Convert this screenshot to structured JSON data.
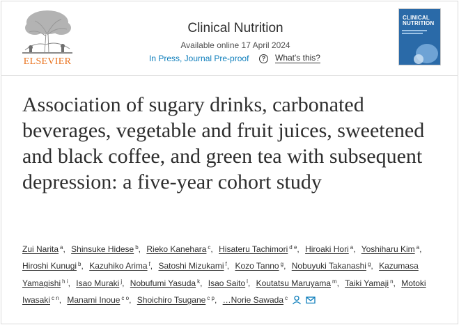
{
  "header": {
    "publisher": "ELSEVIER",
    "journal_title": "Clinical Nutrition",
    "available_online": "Available online 17 April 2024",
    "status": "In Press, Journal Pre-proof",
    "help_glyph": "?",
    "whats_this": "What's this?",
    "cover": {
      "line1": "CLINICAL",
      "line2": "NUTRITION"
    }
  },
  "article": {
    "title": "Association of sugary drinks, carbonated beverages, vegetable and fruit juices, sweetened and black coffee, and green tea with subsequent depression: a five-year cohort study"
  },
  "authors": [
    {
      "name": "Zui Narita",
      "sup": "a"
    },
    {
      "name": "Shinsuke Hidese",
      "sup": "b"
    },
    {
      "name": "Rieko Kanehara",
      "sup": "c"
    },
    {
      "name": "Hisateru Tachimori",
      "sup": "d e"
    },
    {
      "name": "Hiroaki Hori",
      "sup": "a"
    },
    {
      "name": "Yoshiharu Kim",
      "sup": "a"
    },
    {
      "name": "Hiroshi Kunugi",
      "sup": "b"
    },
    {
      "name": "Kazuhiko Arima",
      "sup": "f"
    },
    {
      "name": "Satoshi Mizukami",
      "sup": "f"
    },
    {
      "name": "Kozo Tanno",
      "sup": "g"
    },
    {
      "name": "Nobuyuki Takanashi",
      "sup": "g"
    },
    {
      "name": "Kazumasa Yamagishi",
      "sup": "h i"
    },
    {
      "name": "Isao Muraki",
      "sup": "j"
    },
    {
      "name": "Nobufumi Yasuda",
      "sup": "k"
    },
    {
      "name": "Isao Saito",
      "sup": "l"
    },
    {
      "name": "Koutatsu Maruyama",
      "sup": "m"
    },
    {
      "name": "Taiki Yamaji",
      "sup": "n"
    },
    {
      "name": "Motoki Iwasaki",
      "sup": "c n"
    },
    {
      "name": "Manami Inoue",
      "sup": "c o"
    },
    {
      "name": "Shoichiro Tsugane",
      "sup": "c p"
    },
    {
      "name": "…Norie Sawada",
      "sup": "c"
    }
  ],
  "icons": {
    "corresponding": "person-icon",
    "email": "envelope-icon"
  },
  "colors": {
    "link": "#0c7dbb",
    "publisher_orange": "#e9711c",
    "cover_blue": "#2a6aa8"
  }
}
